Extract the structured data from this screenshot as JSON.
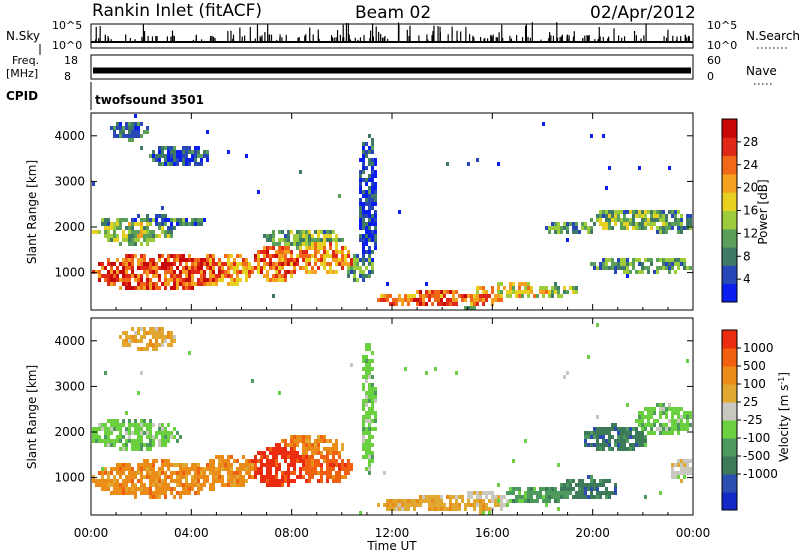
{
  "header": {
    "station": "Rankin Inlet (fitACF)",
    "beam": "Beam 02",
    "date": "02/Apr/2012"
  },
  "strips": {
    "nsky": {
      "label": "N.Sky",
      "ticks": [
        "10^5",
        "10^0"
      ]
    },
    "nsearch": {
      "label": "N.Search",
      "ticks": [
        "10^5",
        "10^0"
      ]
    },
    "freq": {
      "label_line1": "Freq.",
      "label_line2": "[MHz]",
      "ticks": [
        "18",
        "8"
      ]
    },
    "nave": {
      "label": "Nave",
      "ticks": [
        "60",
        "0"
      ]
    },
    "cpid": {
      "label": "CPID",
      "value": "twofsound 3501"
    }
  },
  "chart_data": [
    {
      "type": "heatmap",
      "panel": "power",
      "ylabel": "Slant Range [km]",
      "ylim": [
        180,
        4500
      ],
      "yticks": [
        "1000",
        "2000",
        "3000",
        "4000"
      ],
      "ytick_values": [
        1000,
        2000,
        3000,
        4000
      ],
      "xlim_hours": [
        0,
        24
      ],
      "colorbar": {
        "label": "Power [dB]",
        "ticks": [
          "4",
          "8",
          "12",
          "16",
          "20",
          "24",
          "28"
        ],
        "range": [
          0,
          32
        ],
        "colors": [
          "#0a1ef0",
          "#2848b8",
          "#3e7a66",
          "#5aa05a",
          "#9ccc3c",
          "#e8d020",
          "#f4a020",
          "#f06818",
          "#e02818",
          "#c80808"
        ]
      }
    },
    {
      "type": "heatmap",
      "panel": "velocity",
      "ylabel": "Slant Range [km]",
      "ylim": [
        180,
        4500
      ],
      "yticks": [
        "1000",
        "2000",
        "3000",
        "4000"
      ],
      "ytick_values": [
        1000,
        2000,
        3000,
        4000
      ],
      "xlim_hours": [
        0,
        24
      ],
      "colorbar": {
        "label": "Velocity [m s",
        "label_sup": "-1",
        "label_close": "]",
        "ticks": [
          "1000",
          "500",
          "100",
          "25",
          "-25",
          "-100",
          "-500",
          "-1000"
        ],
        "colors": [
          "#1428c8",
          "#2c4eb0",
          "#3c7a5a",
          "#4e9a5e",
          "#6ad040",
          "#c8c8c0",
          "#e0a830",
          "#ec8c18",
          "#f06010",
          "#ec2c10"
        ]
      }
    }
  ],
  "xaxis": {
    "label": "Time UT",
    "ticks": [
      "00:00",
      "04:00",
      "08:00",
      "12:00",
      "16:00",
      "20:00",
      "00:00"
    ],
    "tick_hours": [
      0,
      4,
      8,
      12,
      16,
      20,
      24
    ]
  }
}
